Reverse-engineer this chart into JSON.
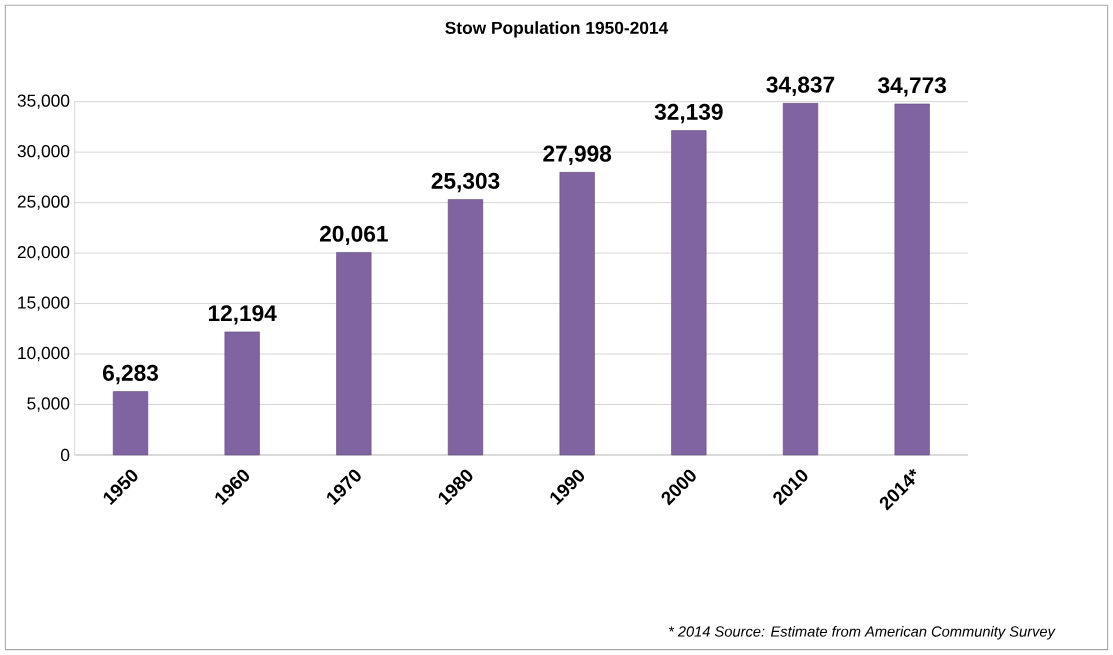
{
  "chart_data": {
    "type": "bar",
    "title": "Stow Population 1950-2014",
    "categories": [
      "1950",
      "1960",
      "1970",
      "1980",
      "1990",
      "2000",
      "2010",
      "2014*"
    ],
    "values": [
      6283,
      12194,
      20061,
      25303,
      27998,
      32139,
      34837,
      34773
    ],
    "value_labels": [
      "6,283",
      "12,194",
      "20,061",
      "25,303",
      "27,998",
      "32,139",
      "34,837",
      "34,773"
    ],
    "color": "#8064a2",
    "ylim": [
      0,
      35000
    ],
    "yticks": [
      {
        "value": 0,
        "label": "0"
      },
      {
        "value": 5000,
        "label": "5,000"
      },
      {
        "value": 10000,
        "label": "10,000"
      },
      {
        "value": 15000,
        "label": "15,000"
      },
      {
        "value": 20000,
        "label": "20,000"
      },
      {
        "value": 25000,
        "label": "25,000"
      },
      {
        "value": 30000,
        "label": "30,000"
      },
      {
        "value": 35000,
        "label": "35,000"
      }
    ],
    "grid": "y",
    "annotations": [
      "* 2014 Source: Estimate from American Community Survey"
    ]
  }
}
